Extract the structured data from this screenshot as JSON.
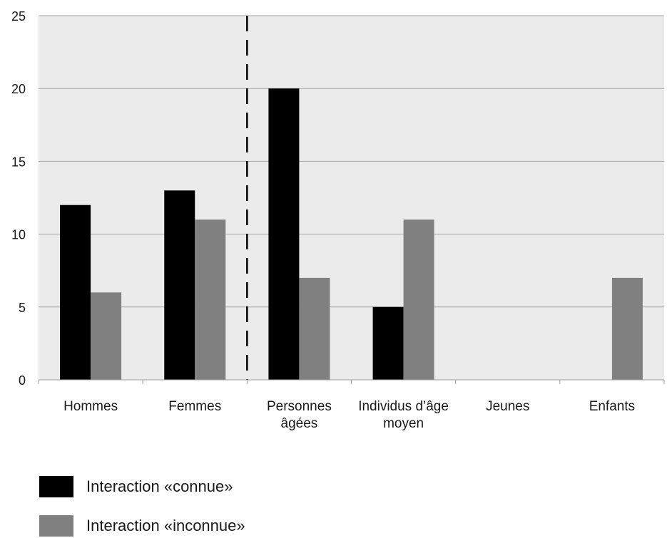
{
  "chart_data": {
    "type": "bar",
    "categories": [
      [
        "Hommes"
      ],
      [
        "Femmes"
      ],
      [
        "Personnes",
        "âgées"
      ],
      [
        "Individus d’âge",
        "moyen"
      ],
      [
        "Jeunes"
      ],
      [
        "Enfants"
      ]
    ],
    "series": [
      {
        "name": "Interaction «connue»",
        "values": [
          12,
          13,
          20,
          5,
          0,
          0
        ],
        "color": "#000000"
      },
      {
        "name": "Interaction «inconnue»",
        "values": [
          6,
          11,
          7,
          11,
          0,
          7
        ],
        "color": "#808080"
      }
    ],
    "yticks": [
      "0",
      "5",
      "10",
      "15",
      "20",
      "25"
    ],
    "ylim": [
      0,
      25
    ],
    "title": "",
    "xlabel": "",
    "ylabel": "",
    "grid": true,
    "legend_position": "bottom-left",
    "divider_after_category": 1
  }
}
